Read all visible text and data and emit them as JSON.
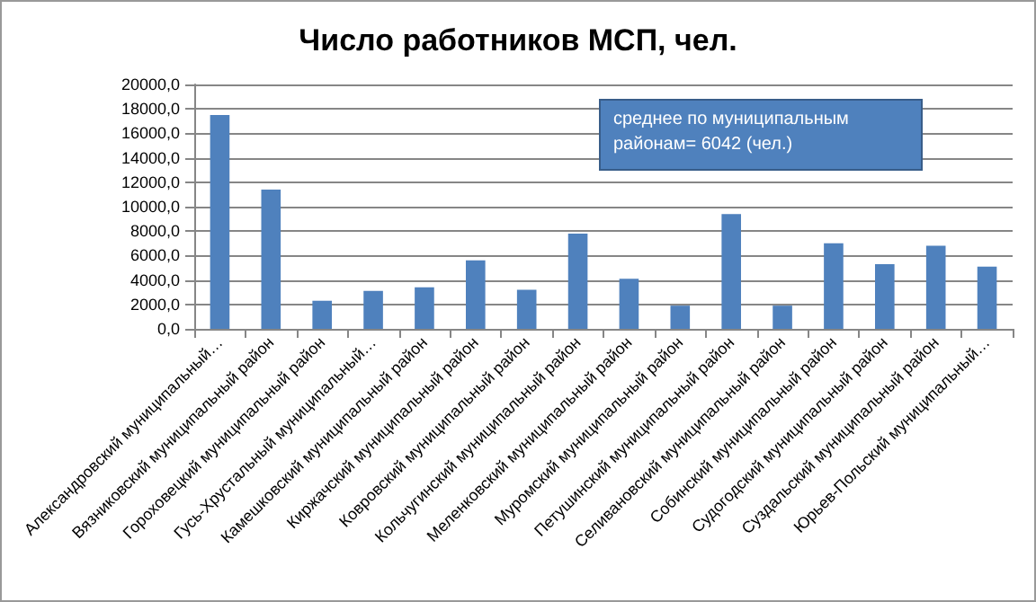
{
  "chart_data": {
    "type": "bar",
    "title": "Число работников МСП, чел.",
    "categories": [
      "Александровский муниципальный…",
      "Вязниковский муниципальный район",
      "Гороховецкий муниципальный район",
      "Гусь-Хрустальный муниципальный…",
      "Камешковский муниципальный район",
      "Киржачский муниципальный район",
      "Ковровский муниципальный район",
      "Кольчугинский муниципальный район",
      "Меленковский муниципальный район",
      "Муромский муниципальный район",
      "Петушинский муниципальный район",
      "Селивановский муниципальный район",
      "Собинский муниципальный район",
      "Судогодский муниципальный район",
      "Суздальский муниципальный район",
      "Юрьев-Польский муниципальный…"
    ],
    "values": [
      17500,
      11400,
      2300,
      3100,
      3400,
      5600,
      3200,
      7800,
      4100,
      1900,
      9400,
      1900,
      7000,
      5300,
      6800,
      5100
    ],
    "color": "#4f81bd",
    "ylim": [
      0,
      20000
    ],
    "yticks": [
      {
        "value": 0,
        "label": "0,0"
      },
      {
        "value": 2000,
        "label": "2000,0"
      },
      {
        "value": 4000,
        "label": "4000,0"
      },
      {
        "value": 6000,
        "label": "6000,0"
      },
      {
        "value": 8000,
        "label": "8000,0"
      },
      {
        "value": 10000,
        "label": "10000,0"
      },
      {
        "value": 12000,
        "label": "12000,0"
      },
      {
        "value": 14000,
        "label": "14000,0"
      },
      {
        "value": 16000,
        "label": "16000,0"
      },
      {
        "value": 18000,
        "label": "18000,0"
      },
      {
        "value": 20000,
        "label": "20000,0"
      }
    ],
    "grid": "y",
    "annotations": [
      "среднее по муниципальным районам= 6042 (чел.)"
    ]
  }
}
